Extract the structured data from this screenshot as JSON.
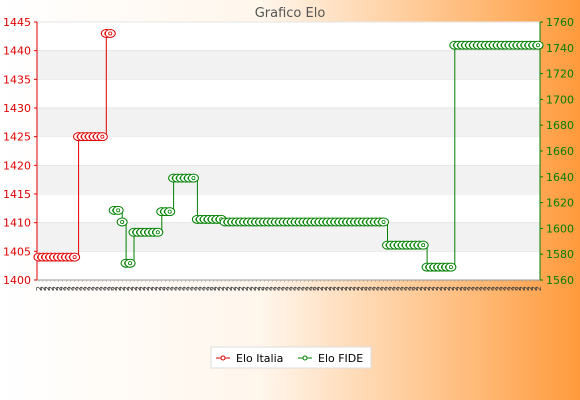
{
  "chart_data": {
    "type": "line",
    "title": "Grafico Elo",
    "xlabel": "",
    "ylabel": "",
    "y_left": {
      "min": 1400,
      "max": 1445,
      "ticks": [
        1400,
        1405,
        1410,
        1415,
        1420,
        1425,
        1430,
        1435,
        1440,
        1445
      ],
      "color": "#e00000"
    },
    "y_right": {
      "min": 1560,
      "max": 1760,
      "ticks": [
        1560,
        1580,
        1600,
        1620,
        1640,
        1660,
        1680,
        1700,
        1720,
        1740,
        1760
      ],
      "color": "#008000"
    },
    "grid": "horizontal bands",
    "legend": {
      "position": "bottom-center"
    },
    "series": [
      {
        "name": "Elo Italia",
        "axis": "left",
        "color": "#e00000",
        "points": [
          [
            0,
            1404
          ],
          [
            1,
            1404
          ],
          [
            2,
            1404
          ],
          [
            3,
            1404
          ],
          [
            4,
            1404
          ],
          [
            5,
            1404
          ],
          [
            6,
            1404
          ],
          [
            7,
            1404
          ],
          [
            8,
            1404
          ],
          [
            9,
            1404
          ],
          [
            10,
            1425
          ],
          [
            11,
            1425
          ],
          [
            12,
            1425
          ],
          [
            13,
            1425
          ],
          [
            14,
            1425
          ],
          [
            15,
            1425
          ],
          [
            16,
            1425
          ],
          [
            17,
            1443
          ],
          [
            18,
            1443
          ]
        ]
      },
      {
        "name": "Elo FIDE",
        "axis": "right",
        "color": "#008000",
        "points": [
          [
            19,
            1614
          ],
          [
            20,
            1614
          ],
          [
            21,
            1605
          ],
          [
            22,
            1573
          ],
          [
            23,
            1573
          ],
          [
            24,
            1597
          ],
          [
            25,
            1597
          ],
          [
            26,
            1597
          ],
          [
            27,
            1597
          ],
          [
            28,
            1597
          ],
          [
            29,
            1597
          ],
          [
            30,
            1597
          ],
          [
            31,
            1613
          ],
          [
            32,
            1613
          ],
          [
            33,
            1613
          ],
          [
            34,
            1639
          ],
          [
            35,
            1639
          ],
          [
            36,
            1639
          ],
          [
            37,
            1639
          ],
          [
            38,
            1639
          ],
          [
            39,
            1639
          ],
          [
            40,
            1607
          ],
          [
            41,
            1607
          ],
          [
            42,
            1607
          ],
          [
            43,
            1607
          ],
          [
            44,
            1607
          ],
          [
            45,
            1607
          ],
          [
            46,
            1607
          ],
          [
            47,
            1605
          ],
          [
            48,
            1605
          ],
          [
            49,
            1605
          ],
          [
            50,
            1605
          ],
          [
            51,
            1605
          ],
          [
            52,
            1605
          ],
          [
            53,
            1605
          ],
          [
            54,
            1605
          ],
          [
            55,
            1605
          ],
          [
            56,
            1605
          ],
          [
            57,
            1605
          ],
          [
            58,
            1605
          ],
          [
            59,
            1605
          ],
          [
            60,
            1605
          ],
          [
            61,
            1605
          ],
          [
            62,
            1605
          ],
          [
            63,
            1605
          ],
          [
            64,
            1605
          ],
          [
            65,
            1605
          ],
          [
            66,
            1605
          ],
          [
            67,
            1605
          ],
          [
            68,
            1605
          ],
          [
            69,
            1605
          ],
          [
            70,
            1605
          ],
          [
            71,
            1605
          ],
          [
            72,
            1605
          ],
          [
            73,
            1605
          ],
          [
            74,
            1605
          ],
          [
            75,
            1605
          ],
          [
            76,
            1605
          ],
          [
            77,
            1605
          ],
          [
            78,
            1605
          ],
          [
            79,
            1605
          ],
          [
            80,
            1605
          ],
          [
            81,
            1605
          ],
          [
            82,
            1605
          ],
          [
            83,
            1605
          ],
          [
            84,
            1605
          ],
          [
            85,
            1605
          ],
          [
            86,
            1605
          ],
          [
            87,
            1605
          ],
          [
            88,
            1587
          ],
          [
            89,
            1587
          ],
          [
            90,
            1587
          ],
          [
            91,
            1587
          ],
          [
            92,
            1587
          ],
          [
            93,
            1587
          ],
          [
            94,
            1587
          ],
          [
            95,
            1587
          ],
          [
            96,
            1587
          ],
          [
            97,
            1587
          ],
          [
            98,
            1570
          ],
          [
            99,
            1570
          ],
          [
            100,
            1570
          ],
          [
            101,
            1570
          ],
          [
            102,
            1570
          ],
          [
            103,
            1570
          ],
          [
            104,
            1570
          ],
          [
            105,
            1742
          ],
          [
            106,
            1742
          ],
          [
            107,
            1742
          ],
          [
            108,
            1742
          ],
          [
            109,
            1742
          ],
          [
            110,
            1742
          ],
          [
            111,
            1742
          ],
          [
            112,
            1742
          ],
          [
            113,
            1742
          ],
          [
            114,
            1742
          ],
          [
            115,
            1742
          ],
          [
            116,
            1742
          ],
          [
            117,
            1742
          ],
          [
            118,
            1742
          ],
          [
            119,
            1742
          ],
          [
            120,
            1742
          ],
          [
            121,
            1742
          ],
          [
            122,
            1742
          ],
          [
            123,
            1742
          ],
          [
            124,
            1742
          ],
          [
            125,
            1742
          ],
          [
            126,
            1742
          ]
        ]
      }
    ],
    "x_count": 127,
    "x_tick_char": "2"
  }
}
